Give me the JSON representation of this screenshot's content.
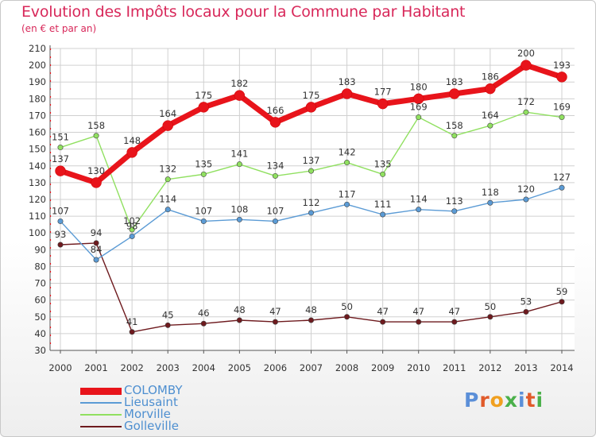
{
  "header": {
    "title": "Evolution des Impôts locaux pour la Commune par Habitant",
    "subtitle": "(en € et par an)"
  },
  "brand": {
    "text": "Proxiti",
    "letter_colors": [
      "#5b8fd8",
      "#e05a2a",
      "#f0a020",
      "#4ab04a",
      "#5b8fd8",
      "#e05a2a",
      "#4ab04a"
    ]
  },
  "chart_data": {
    "type": "line",
    "x": [
      "2000",
      "2001",
      "2002",
      "2003",
      "2004",
      "2005",
      "2006",
      "2007",
      "2008",
      "2009",
      "2010",
      "2011",
      "2012",
      "2013",
      "2014"
    ],
    "yticks": [
      30,
      40,
      50,
      60,
      70,
      80,
      90,
      100,
      110,
      120,
      130,
      140,
      150,
      160,
      170,
      180,
      190,
      200,
      210
    ],
    "ylim": [
      30,
      210
    ],
    "grid": true,
    "legend_position": "bottom-left",
    "series": [
      {
        "name": "COLOMBY",
        "color": "#e8141b",
        "values": [
          137,
          130,
          148,
          164,
          175,
          182,
          166,
          175,
          183,
          177,
          180,
          183,
          186,
          200,
          193
        ]
      },
      {
        "name": "Lieusaint",
        "color": "#5b9bd5",
        "values": [
          107,
          84,
          98,
          114,
          107,
          108,
          107,
          112,
          117,
          111,
          114,
          113,
          118,
          120,
          127
        ]
      },
      {
        "name": "Morville",
        "color": "#90e060",
        "values": [
          151,
          158,
          102,
          132,
          135,
          141,
          134,
          137,
          142,
          135,
          169,
          158,
          164,
          172,
          169
        ]
      },
      {
        "name": "Golleville",
        "color": "#6e1a1e",
        "values": [
          93,
          94,
          41,
          45,
          46,
          48,
          47,
          48,
          50,
          47,
          47,
          47,
          50,
          53,
          59
        ]
      }
    ]
  }
}
